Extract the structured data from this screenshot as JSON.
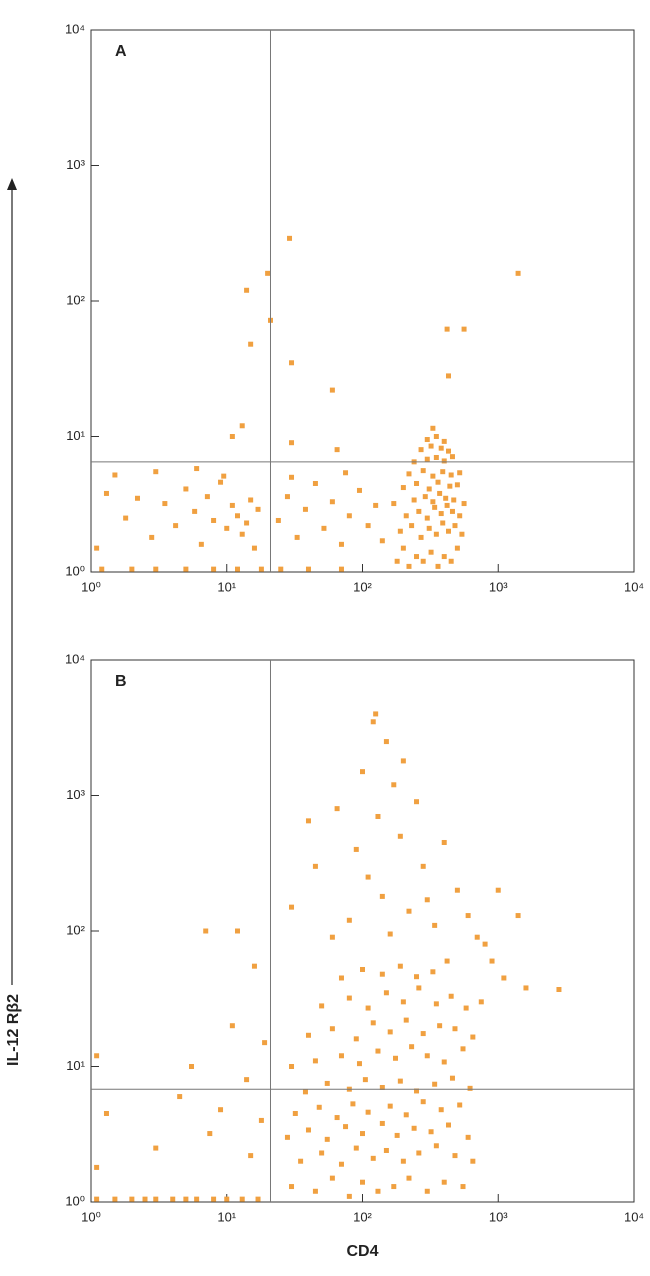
{
  "chart_data": [
    {
      "type": "scatter",
      "title": "A",
      "color": "#f0a040",
      "log_scale": true,
      "xlim": [
        1,
        10000
      ],
      "ylim": [
        1,
        10000
      ],
      "xticks": [
        {
          "value": 1,
          "label": "10⁰"
        },
        {
          "value": 10,
          "label": "10¹"
        },
        {
          "value": 100,
          "label": "10²"
        },
        {
          "value": 1000,
          "label": "10³"
        },
        {
          "value": 10000,
          "label": "10⁴"
        }
      ],
      "yticks": [
        {
          "value": 1,
          "label": "10⁰"
        },
        {
          "value": 10,
          "label": "10¹"
        },
        {
          "value": 100,
          "label": "10²"
        },
        {
          "value": 1000,
          "label": "10³"
        },
        {
          "value": 10000,
          "label": "10⁴"
        }
      ],
      "quadrant": {
        "x": 21,
        "y": 6.5
      },
      "x": [
        180,
        200,
        220,
        250,
        280,
        320,
        360,
        400,
        450,
        500,
        190,
        230,
        270,
        310,
        350,
        390,
        430,
        480,
        540,
        210,
        260,
        300,
        340,
        380,
        420,
        460,
        520,
        170,
        240,
        290,
        330,
        370,
        410,
        470,
        560,
        200,
        250,
        310,
        360,
        440,
        500,
        220,
        280,
        330,
        390,
        450,
        520,
        240,
        300,
        350,
        400,
        460,
        270,
        320,
        380,
        430,
        300,
        350,
        400,
        330,
        1.3,
        1.8,
        2.2,
        2.8,
        3.5,
        4.2,
        5,
        5.8,
        6.5,
        7.2,
        8,
        9,
        10,
        11,
        12,
        13,
        14,
        15,
        16,
        17,
        1.1,
        1.5,
        3,
        6,
        9.5,
        24,
        28,
        33,
        38,
        45,
        52,
        60,
        70,
        80,
        95,
        110,
        125,
        140,
        30,
        75,
        1.2,
        2,
        3,
        5,
        8,
        12,
        18,
        25,
        40,
        70,
        29,
        20,
        14,
        15,
        21,
        30,
        60,
        1400,
        420,
        560,
        430,
        11,
        13,
        30,
        65
      ],
      "values": [
        1.2,
        1.5,
        1.1,
        1.3,
        1.2,
        1.4,
        1.1,
        1.3,
        1.2,
        1.5,
        2,
        2.2,
        1.8,
        2.1,
        1.9,
        2.3,
        2,
        2.2,
        1.9,
        2.6,
        2.8,
        2.5,
        3,
        2.7,
        3.1,
        2.8,
        2.6,
        3.2,
        3.4,
        3.6,
        3.3,
        3.8,
        3.5,
        3.4,
        3.2,
        4.2,
        4.5,
        4.1,
        4.6,
        4.3,
        4.4,
        5.3,
        5.6,
        5.1,
        5.5,
        5.2,
        5.4,
        6.5,
        6.8,
        7,
        6.6,
        7.1,
        8,
        8.5,
        8.2,
        7.8,
        9.5,
        10,
        9.2,
        11.5,
        3.8,
        2.5,
        3.5,
        1.8,
        3.2,
        2.2,
        4.1,
        2.8,
        1.6,
        3.6,
        2.4,
        4.6,
        2.1,
        3.1,
        2.6,
        1.9,
        2.3,
        3.4,
        1.5,
        2.9,
        1.5,
        5.2,
        5.5,
        5.8,
        5.1,
        2.4,
        3.6,
        1.8,
        2.9,
        4.5,
        2.1,
        3.3,
        1.6,
        2.6,
        4,
        2.2,
        3.1,
        1.7,
        5,
        5.4,
        1.05,
        1.05,
        1.05,
        1.05,
        1.05,
        1.05,
        1.05,
        1.05,
        1.05,
        1.05,
        290,
        160,
        120,
        48,
        72,
        35,
        22,
        160,
        62,
        62,
        28,
        10,
        12,
        9,
        8
      ]
    },
    {
      "type": "scatter",
      "title": "B",
      "color": "#f0a040",
      "log_scale": true,
      "xlabel": "CD4",
      "ylabel": "IL-12 Rβ2",
      "xlim": [
        1,
        10000
      ],
      "ylim": [
        1,
        10000
      ],
      "xticks": [
        {
          "value": 1,
          "label": "10⁰"
        },
        {
          "value": 10,
          "label": "10¹"
        },
        {
          "value": 100,
          "label": "10²"
        },
        {
          "value": 1000,
          "label": "10³"
        },
        {
          "value": 10000,
          "label": "10⁴"
        }
      ],
      "yticks": [
        {
          "value": 1,
          "label": "10⁰"
        },
        {
          "value": 10,
          "label": "10¹"
        },
        {
          "value": 100,
          "label": "10²"
        },
        {
          "value": 1000,
          "label": "10³"
        },
        {
          "value": 10000,
          "label": "10⁴"
        }
      ],
      "quadrant": {
        "x": 21,
        "y": 6.8
      },
      "x": [
        30,
        45,
        60,
        80,
        100,
        130,
        170,
        220,
        300,
        400,
        550,
        35,
        50,
        70,
        90,
        120,
        150,
        200,
        260,
        350,
        480,
        650,
        28,
        40,
        55,
        75,
        100,
        140,
        180,
        240,
        320,
        430,
        600,
        32,
        48,
        65,
        85,
        110,
        160,
        210,
        280,
        380,
        520,
        38,
        55,
        80,
        105,
        140,
        190,
        250,
        340,
        460,
        620,
        30,
        45,
        70,
        95,
        130,
        175,
        230,
        300,
        400,
        550,
        40,
        60,
        90,
        120,
        160,
        210,
        280,
        370,
        480,
        650,
        50,
        80,
        110,
        150,
        200,
        260,
        350,
        450,
        580,
        70,
        100,
        140,
        190,
        250,
        330,
        420,
        30,
        40,
        45,
        60,
        65,
        80,
        90,
        100,
        110,
        120,
        125,
        130,
        140,
        150,
        160,
        170,
        190,
        200,
        220,
        250,
        280,
        300,
        340,
        400,
        500,
        600,
        700,
        800,
        1000,
        1400,
        1600,
        2800,
        750,
        900,
        1100,
        1.1,
        1.3,
        2,
        2.5,
        3,
        4,
        5,
        6,
        8,
        10,
        13,
        17,
        3,
        4.5,
        5.5,
        7,
        7.5,
        9,
        11,
        12,
        14,
        15,
        16,
        18,
        19,
        1.1,
        1.5,
        1.1
      ],
      "values": [
        1.3,
        1.2,
        1.5,
        1.1,
        1.4,
        1.2,
        1.3,
        1.5,
        1.2,
        1.4,
        1.3,
        2,
        2.3,
        1.9,
        2.5,
        2.1,
        2.4,
        2,
        2.3,
        2.6,
        2.2,
        2,
        3,
        3.4,
        2.9,
        3.6,
        3.2,
        3.8,
        3.1,
        3.5,
        3.3,
        3.7,
        3,
        4.5,
        5,
        4.2,
        5.3,
        4.6,
        5.1,
        4.4,
        5.5,
        4.8,
        5.2,
        6.5,
        7.5,
        6.8,
        8,
        7,
        7.8,
        6.6,
        7.4,
        8.2,
        6.9,
        10,
        11,
        12,
        10.5,
        13,
        11.5,
        14,
        12,
        10.8,
        13.5,
        17,
        19,
        16,
        21,
        18,
        22,
        17.5,
        20,
        19,
        16.5,
        28,
        32,
        27,
        35,
        30,
        38,
        29,
        33,
        27,
        45,
        52,
        48,
        55,
        46,
        50,
        60,
        150,
        650,
        300,
        90,
        800,
        120,
        400,
        1500,
        250,
        3500,
        4000,
        700,
        180,
        2500,
        95,
        1200,
        500,
        1800,
        140,
        900,
        300,
        170,
        110,
        450,
        200,
        130,
        90,
        80,
        200,
        130,
        38,
        37,
        30,
        60,
        45,
        12,
        4.5,
        1.05,
        1.05,
        1.05,
        1.05,
        1.05,
        1.05,
        1.05,
        1.05,
        1.05,
        1.05,
        2.5,
        6,
        10,
        100,
        3.2,
        4.8,
        20,
        100,
        8,
        2.2,
        55,
        4,
        15,
        1.8,
        1.05,
        1.05
      ]
    }
  ]
}
